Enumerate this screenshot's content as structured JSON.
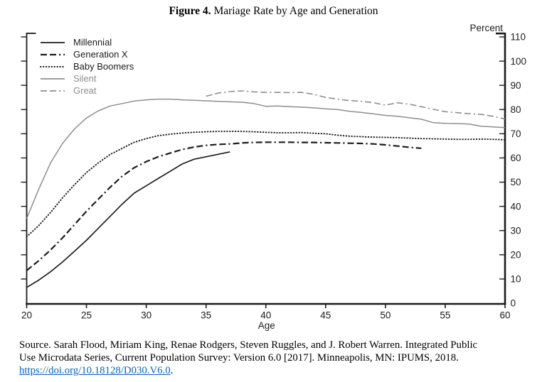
{
  "page": {
    "title_prefix": "Figure 4.",
    "title_rest": " Mariage Rate by Age and Generation"
  },
  "chart_data": {
    "type": "line",
    "title": "Figure 4. Mariage Rate by Age and Generation",
    "xlabel": "Age",
    "ylabel": "Percent",
    "xlim": [
      20,
      60
    ],
    "ylim": [
      0,
      110
    ],
    "x_ticks": [
      20,
      25,
      30,
      35,
      40,
      45,
      50,
      55,
      60
    ],
    "y_ticks": [
      0,
      10,
      20,
      30,
      40,
      50,
      60,
      70,
      80,
      90,
      100,
      110
    ],
    "y_axis_side": "right",
    "grid": false,
    "legend_position": "top-left",
    "series": [
      {
        "name": "Millennial",
        "color": "#1c1c1c",
        "text_color": "#1c1c1c",
        "dash": "solid",
        "width": 1.7,
        "x_start": 20,
        "x_step": 1,
        "values": [
          6.5,
          9.5,
          13,
          17,
          21.5,
          26,
          31,
          36,
          41,
          45.5,
          48.5,
          51.5,
          54.5,
          57.5,
          59.5,
          60.5,
          61.5,
          62.5
        ]
      },
      {
        "name": "Generation X",
        "color": "#1c1c1c",
        "text_color": "#1c1c1c",
        "dash": "dashdot",
        "width": 2.2,
        "x_start": 20,
        "x_step": 1,
        "values": [
          13.5,
          17.5,
          22,
          27,
          32.5,
          38,
          43,
          48,
          52.5,
          56,
          58.5,
          60.5,
          62,
          63.5,
          64.5,
          65.2,
          65.6,
          65.8,
          66.2,
          66.4,
          66.5,
          66.5,
          66.5,
          66.4,
          66.4,
          66.3,
          66.2,
          66.1,
          66,
          65.8,
          65.4,
          64.9,
          64.4,
          64
        ]
      },
      {
        "name": "Baby Boomers",
        "color": "#1c1c1c",
        "text_color": "#1c1c1c",
        "dash": "dot",
        "width": 2,
        "x_start": 20,
        "x_step": 1,
        "values": [
          27.5,
          32,
          37.5,
          43.5,
          49,
          54,
          58,
          61.5,
          64,
          66.5,
          68,
          69.2,
          69.8,
          70.3,
          70.6,
          70.8,
          71,
          71,
          71,
          70.8,
          70.6,
          70.4,
          70.4,
          70.5,
          70.2,
          70,
          69.4,
          69,
          68.8,
          68.6,
          68.5,
          68.4,
          68.2,
          68,
          67.9,
          67.8,
          67.7,
          67.7,
          67.8,
          67.7,
          67.5
        ]
      },
      {
        "name": "Silent",
        "color": "#8e8e8e",
        "text_color": "#8e8e8e",
        "dash": "solid",
        "width": 1.5,
        "x_start": 20,
        "x_step": 1,
        "values": [
          35,
          47,
          58,
          66,
          72,
          76.5,
          79.5,
          81.5,
          82.5,
          83.5,
          84,
          84.3,
          84.3,
          84,
          83.8,
          83.6,
          83.4,
          83.2,
          83,
          82.5,
          81.3,
          81.5,
          81.2,
          81,
          80.7,
          80.3,
          80,
          79.3,
          78.8,
          78.2,
          77.6,
          77.2,
          76.6,
          76,
          74.6,
          74.3,
          74.2,
          74,
          73.1,
          72.8,
          72.5
        ]
      },
      {
        "name": "Great",
        "color": "#8e8e8e",
        "text_color": "#8e8e8e",
        "dash": "dashdot",
        "width": 1.6,
        "x_start": 35,
        "x_step": 1,
        "values": [
          85.5,
          86.8,
          87.4,
          87.7,
          87.3,
          87.1,
          87.1,
          87,
          87.1,
          86.3,
          85,
          84.3,
          83.7,
          83.4,
          82.8,
          81.8,
          82.8,
          82.2,
          81.2,
          80.1,
          79.1,
          78.7,
          78.3,
          78,
          77.2,
          76.1
        ]
      }
    ]
  },
  "footer": {
    "line1": "Source. Sarah Flood, Miriam King, Renae Rodgers, Steven Ruggles, and J. Robert Warren. Integrated Public",
    "line2": "Use Microdata Series, Current Population Survey: Version 6.0 [2017]. Minneapolis, MN: IPUMS, 2018.",
    "link": "https://doi.org/10.18128/D030.V6.0",
    "link_suffix": ".",
    "link_color": "#0563C1"
  }
}
